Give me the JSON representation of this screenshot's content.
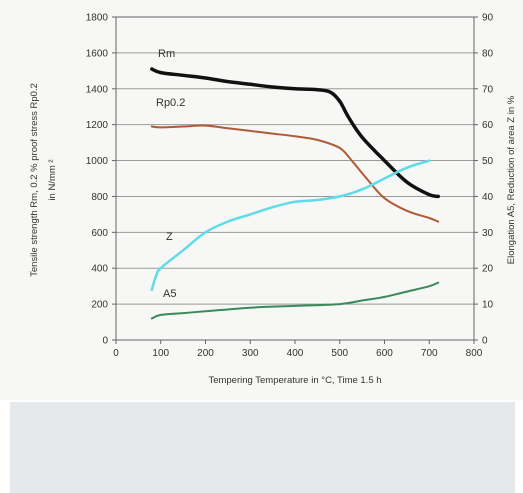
{
  "chart_data": {
    "type": "line",
    "xlabel": "Tempering Temperature in °C, Time 1.5 h",
    "ylabel_left": [
      "Tensile strength Rm, 0.2 % proof stress Rp0.2",
      "in N/mm ²"
    ],
    "ylabel_right": "Elongation A5, Reduction of area Z in %",
    "xlim": [
      0,
      800
    ],
    "ylim_left": [
      0,
      1800
    ],
    "ylim_right": [
      0,
      90
    ],
    "x_ticks": [
      "0",
      "100",
      "200",
      "300",
      "400",
      "500",
      "600",
      "700",
      "800"
    ],
    "y_ticks_left": [
      "0",
      "200",
      "400",
      "600",
      "800",
      "1000",
      "1200",
      "1400",
      "1600",
      "1800"
    ],
    "y_ticks_right": [
      "0",
      "10",
      "20",
      "30",
      "40",
      "50",
      "60",
      "70",
      "80",
      "90"
    ],
    "grid": "horizontal",
    "series": [
      {
        "name": "Rm",
        "axis": "left",
        "color": "#111111",
        "x": [
          80,
          100,
          150,
          200,
          250,
          300,
          350,
          400,
          450,
          480,
          500,
          520,
          550,
          600,
          650,
          700,
          720
        ],
        "y": [
          1510,
          1490,
          1475,
          1460,
          1440,
          1425,
          1410,
          1400,
          1395,
          1380,
          1330,
          1240,
          1130,
          1000,
          880,
          810,
          800
        ]
      },
      {
        "name": "Rp0.2",
        "axis": "left",
        "color": "#b05a38",
        "x": [
          80,
          100,
          150,
          200,
          250,
          300,
          350,
          400,
          450,
          500,
          530,
          560,
          600,
          650,
          700,
          720
        ],
        "y": [
          1190,
          1185,
          1190,
          1195,
          1180,
          1165,
          1150,
          1135,
          1115,
          1070,
          990,
          900,
          790,
          720,
          680,
          660
        ]
      },
      {
        "name": "Z",
        "axis": "right",
        "color": "#5fdce8",
        "x": [
          80,
          90,
          100,
          150,
          200,
          250,
          300,
          350,
          400,
          450,
          500,
          550,
          600,
          650,
          700
        ],
        "y": [
          14,
          18,
          20,
          25,
          30,
          33,
          35,
          37,
          38.5,
          39,
          40,
          42,
          45,
          48,
          50
        ]
      },
      {
        "name": "A5",
        "axis": "right",
        "color": "#3a8a5c",
        "x": [
          80,
          100,
          150,
          200,
          300,
          400,
          500,
          550,
          600,
          650,
          700,
          720
        ],
        "y": [
          6,
          7,
          7.5,
          8,
          9,
          9.5,
          10,
          11,
          12,
          13.5,
          15,
          16
        ]
      }
    ]
  }
}
